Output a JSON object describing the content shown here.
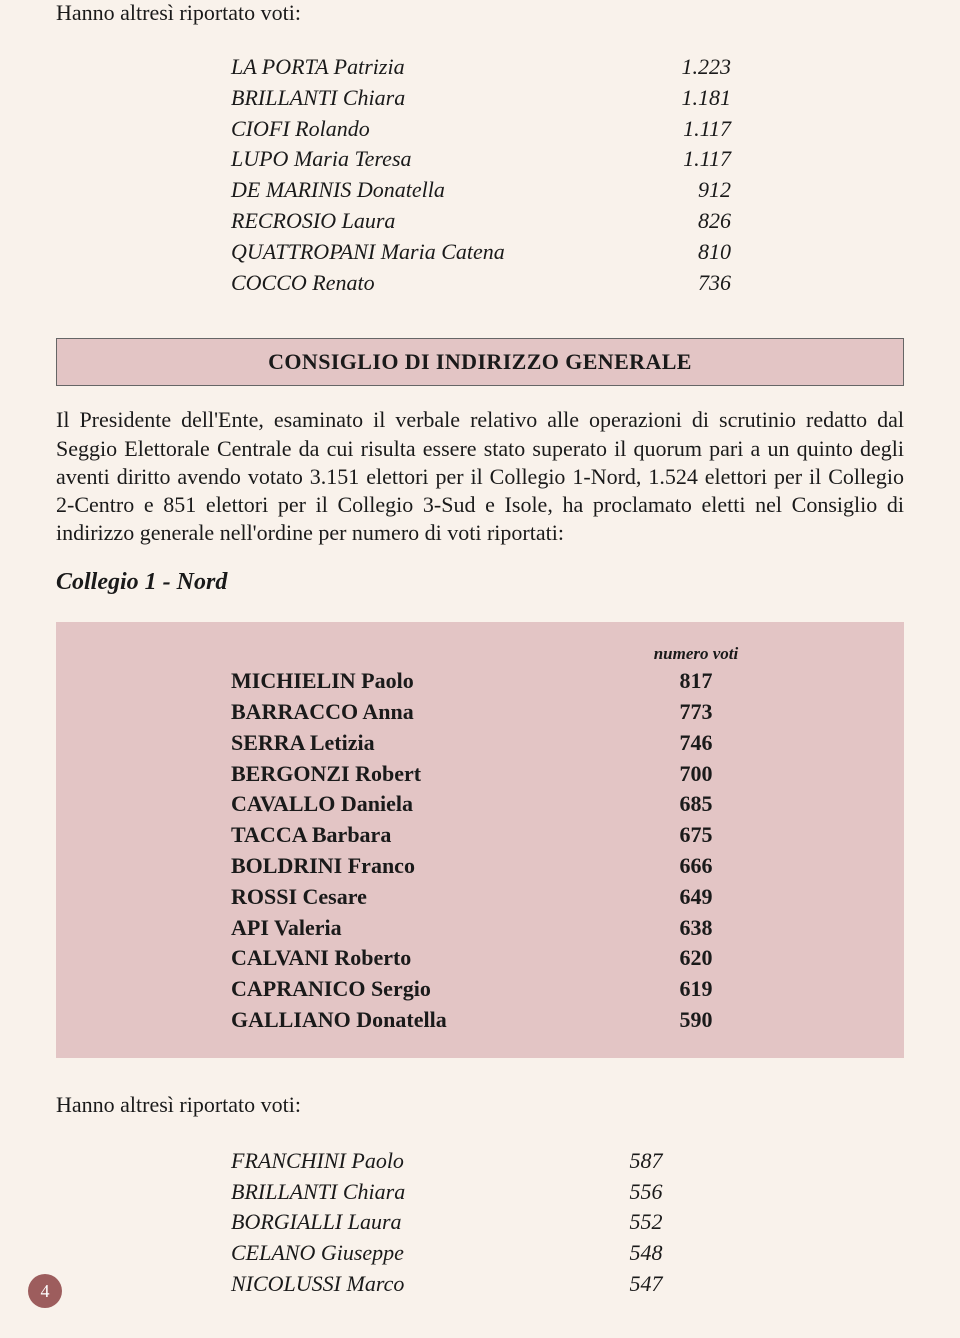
{
  "intro_text": "Hanno altresì riportato voti:",
  "top_list": [
    {
      "name": "LA PORTA Patrizia",
      "value": "1.223"
    },
    {
      "name": "BRILLANTI  Chiara",
      "value": "1.181"
    },
    {
      "name": "CIOFI Rolando",
      "value": "1.117"
    },
    {
      "name": "LUPO Maria Teresa",
      "value": "1.117"
    },
    {
      "name": "DE MARINIS Donatella",
      "value": "912"
    },
    {
      "name": "RECROSIO Laura",
      "value": "826"
    },
    {
      "name": "QUATTROPANI Maria Catena",
      "value": "810"
    },
    {
      "name": "COCCO Renato",
      "value": "736"
    }
  ],
  "header_bar": "CONSIGLIO DI INDIRIZZO GENERALE",
  "body_paragraph": "Il Presidente dell'Ente, esaminato il verbale relativo alle operazioni di scrutinio redatto dal Seggio Elettorale Centrale da cui risulta essere stato superato il quorum pari a un quinto degli aventi diritto avendo votato 3.151 elettori per il Collegio 1-Nord, 1.524 elettori per il Collegio 2-Centro e 851 elettori per il Collegio 3-Sud e Isole, ha proclamato eletti nel Consiglio di indirizzo generale nell'ordine per numero di voti riportati:",
  "section_title": "Collegio 1 - Nord",
  "result_header": "numero voti",
  "results": [
    {
      "name": "MICHIELIN Paolo",
      "value": "817"
    },
    {
      "name": "BARRACCO Anna",
      "value": "773"
    },
    {
      "name": "SERRA Letizia",
      "value": "746"
    },
    {
      "name": "BERGONZI Robert",
      "value": "700"
    },
    {
      "name": "CAVALLO Daniela",
      "value": "685"
    },
    {
      "name": "TACCA Barbara",
      "value": "675"
    },
    {
      "name": "BOLDRINI Franco",
      "value": "666"
    },
    {
      "name": "ROSSI Cesare",
      "value": "649"
    },
    {
      "name": "API Valeria",
      "value": "638"
    },
    {
      "name": "CALVANI Roberto",
      "value": "620"
    },
    {
      "name": "CAPRANICO Sergio",
      "value": "619"
    },
    {
      "name": "GALLIANO Donatella",
      "value": "590"
    }
  ],
  "also_text": "Hanno altresì riportato voti:",
  "bottom_list": [
    {
      "name": "FRANCHINI Paolo",
      "value": "587"
    },
    {
      "name": "BRILLANTI Chiara",
      "value": "556"
    },
    {
      "name": "BORGIALLI Laura",
      "value": "552"
    },
    {
      "name": "CELANO Giuseppe",
      "value": "548"
    },
    {
      "name": "NICOLUSSI Marco",
      "value": "547"
    }
  ],
  "page_number": "4",
  "colors": {
    "page_bg": "#f9f2eb",
    "box_bg": "#e3c5c5",
    "page_badge": "#9d5d5d",
    "text": "#1a1a1a"
  }
}
